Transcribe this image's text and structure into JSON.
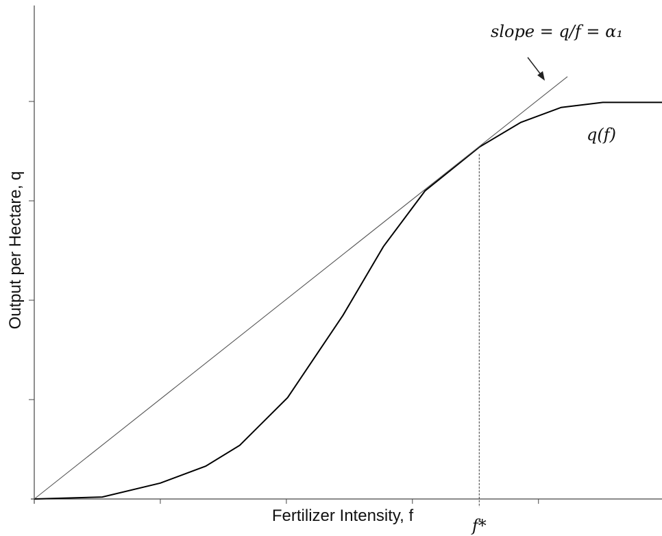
{
  "chart_data": {
    "type": "line",
    "x_label": "Fertilizer Intensity,  f",
    "y_label": "Output per Hectare,  q",
    "xlim": [
      0,
      4.98
    ],
    "ylim": [
      0,
      5
    ],
    "xticks": [
      1,
      2,
      3,
      4
    ],
    "yticks": [
      1,
      2,
      3,
      4
    ],
    "series": [
      {
        "name": "q(f)",
        "color": "#000000",
        "x": [
          0,
          0.54,
          1.0,
          1.36,
          1.63,
          2.01,
          2.45,
          2.77,
          3.1,
          3.53,
          3.86,
          4.18,
          4.51,
          4.98
        ],
        "values": [
          0,
          0.02,
          0.16,
          0.33,
          0.54,
          1.02,
          1.85,
          2.54,
          3.1,
          3.54,
          3.79,
          3.94,
          3.99,
          3.99
        ]
      },
      {
        "name": "slope = q/f = α₁",
        "color": "#555555",
        "x": [
          0,
          4.23
        ],
        "values": [
          0,
          4.25
        ]
      }
    ],
    "marker_line": {
      "label": "f*",
      "x": 3.53,
      "y": 3.54
    }
  }
}
